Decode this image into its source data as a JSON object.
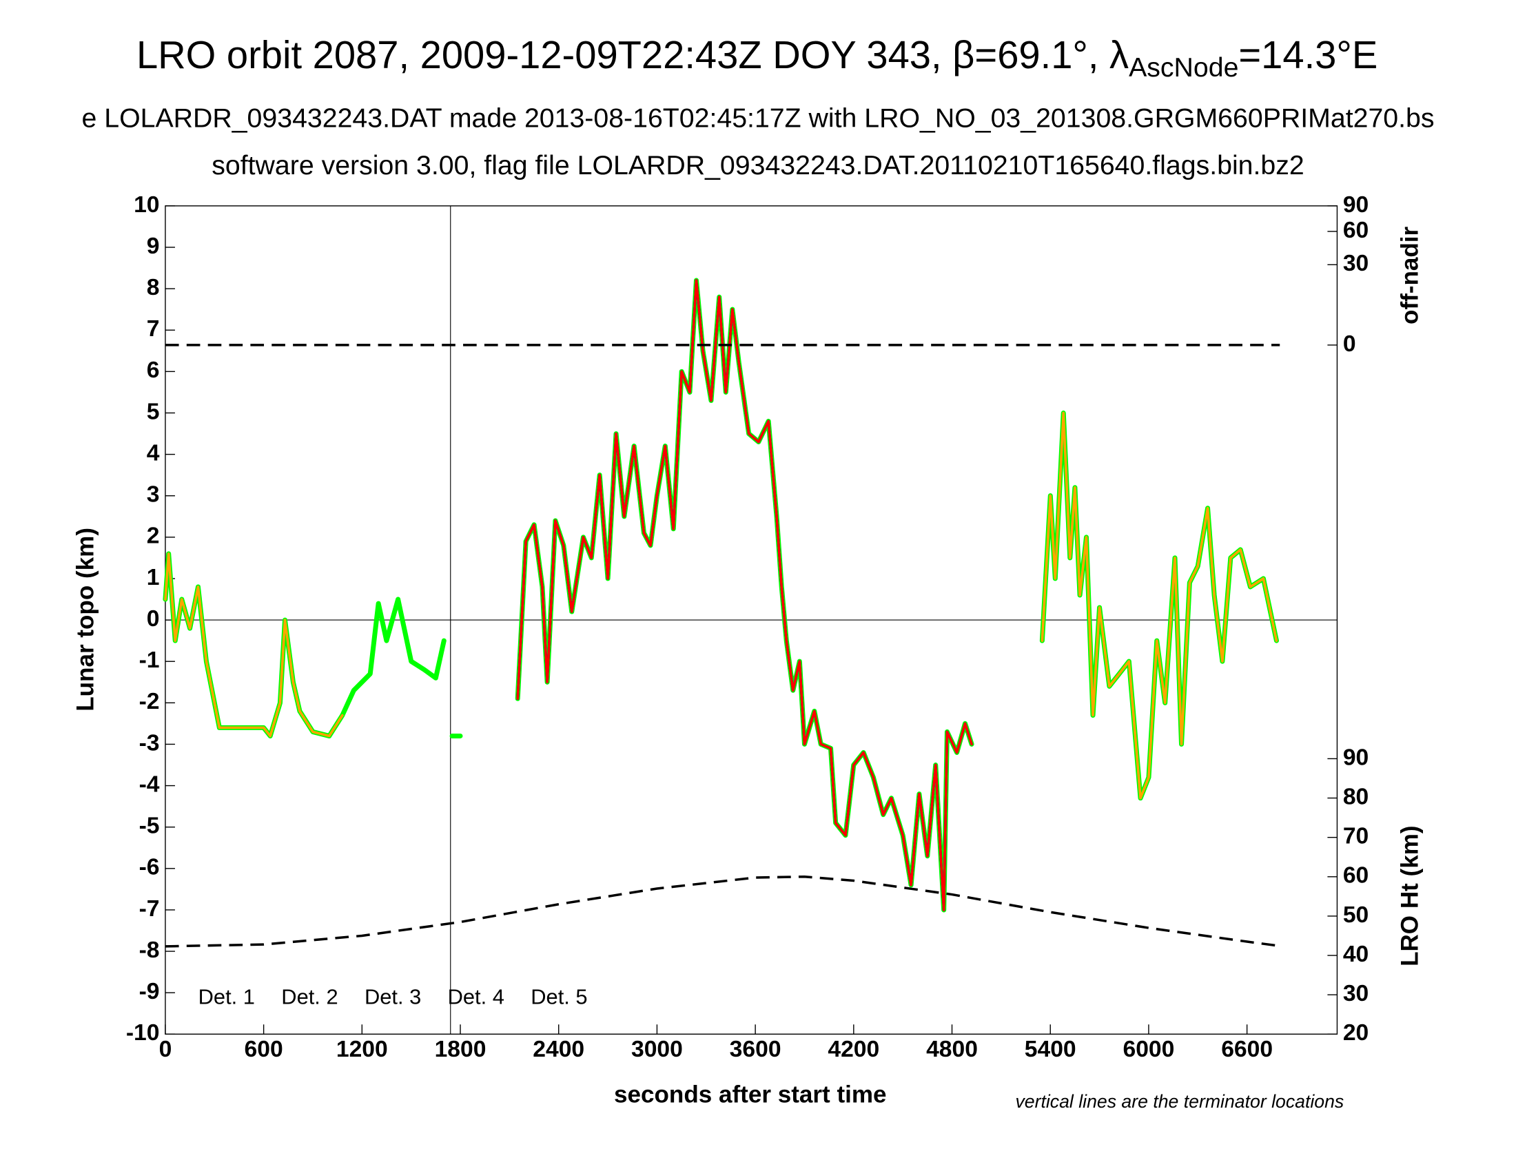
{
  "chart_data": {
    "type": "line",
    "title": "LRO orbit 2087, 2009-12-09T22:43Z DOY 343, β=69.1°, λ",
    "title_subscript": "AscNode",
    "title_end": "=14.3°E",
    "subtitle": "e LOLARDR_093432243.DAT made 2013-08-16T02:45:17Z with LRO_NO_03_201308.GRGM660PRIMat270.bs",
    "subtitle2": "software version 3.00, flag file LOLARDR_093432243.DAT.20110210T165640.flags.bin.bz2",
    "x_label": "seconds after start time",
    "y_label": "Lunar topo (km)",
    "y2_label": "off-nadir",
    "y3_label": "LRO Ht (km)",
    "note": "vertical lines are the terminator locations",
    "xlim": [
      0,
      7150
    ],
    "xticks": [
      0,
      600,
      1200,
      1800,
      2400,
      3000,
      3600,
      4200,
      4800,
      5400,
      6000,
      6600
    ],
    "ylim": [
      -10,
      10
    ],
    "yticks": [
      -10,
      -9,
      -8,
      -7,
      -6,
      -5,
      -4,
      -3,
      -2,
      -1,
      0,
      1,
      2,
      3,
      4,
      5,
      6,
      7,
      8,
      9,
      10
    ],
    "y2lim": [
      0,
      90
    ],
    "y2ticks": [
      0,
      30,
      60,
      90
    ],
    "y2scale": "sqrt",
    "y3lim": [
      20,
      90
    ],
    "y3ticks": [
      20,
      30,
      40,
      50,
      60,
      70,
      80,
      90
    ],
    "vlines": [
      1740
    ],
    "hlines": [
      0
    ],
    "legend": "lower left",
    "series": [
      {
        "name": "Det. 1",
        "color": "#000000",
        "axis": "y",
        "x": [
          2150,
          2200,
          2250,
          2300,
          2330,
          2380,
          2430,
          2480,
          2550,
          2600,
          2650,
          2700,
          2750,
          2800,
          2860,
          2920,
          2960,
          3000,
          3050,
          3100,
          3150,
          3200,
          3240,
          3280,
          3330,
          3380,
          3420,
          3460,
          3500,
          3560,
          3620,
          3680,
          3730,
          3760,
          3790,
          3830,
          3870,
          3900,
          3960,
          4000,
          4060,
          4090,
          4150,
          4200,
          4260,
          4320,
          4380,
          4430,
          4500,
          4550,
          4600,
          4650,
          4700,
          4750,
          4770,
          4830,
          4880,
          4920
        ],
        "values": [
          -1.9,
          1.9,
          2.3,
          0.8,
          -1.5,
          2.4,
          1.8,
          0.2,
          2,
          1.5,
          3.5,
          1,
          4.5,
          2.5,
          4.2,
          2.1,
          1.8,
          3,
          4.2,
          2.2,
          6,
          5.5,
          8.2,
          6.5,
          5.3,
          7.8,
          5.5,
          7.5,
          6.2,
          4.5,
          4.3,
          4.8,
          2.5,
          0.8,
          -0.5,
          -1.7,
          -1,
          -3,
          -2.2,
          -3,
          -3.1,
          -4.9,
          -5.2,
          -3.5,
          -3.2,
          -3.8,
          -4.7,
          -4.3,
          -5.2,
          -6.4,
          -4.2,
          -5.7,
          -3.5,
          -7,
          -2.7,
          -3.2,
          -2.5,
          -3
        ]
      },
      {
        "name": "Det. 2",
        "color": "#0000ff",
        "axis": "y",
        "x": [
          2150,
          2200,
          2250,
          2300,
          2330,
          2380,
          2430,
          2480,
          2550,
          2600,
          2650,
          2700,
          2750,
          2800,
          2860,
          2920,
          2960,
          3000,
          3050,
          3100,
          3150,
          3200,
          3240,
          3280,
          3330,
          3380,
          3420,
          3460,
          3500,
          3560,
          3620,
          3680,
          3730,
          3760,
          3790,
          3830,
          3870,
          3900,
          3960,
          4000,
          4060,
          4090,
          4150,
          4200,
          4260,
          4320,
          4380,
          4430,
          4500,
          4550,
          4600,
          4650,
          4700,
          4750,
          4770,
          4830,
          4880,
          4920
        ],
        "values": [
          -1.9,
          1.9,
          2.3,
          0.8,
          -1.5,
          2.4,
          1.8,
          0.2,
          2,
          1.5,
          3.5,
          1,
          4.5,
          2.5,
          4.2,
          2.1,
          1.8,
          3,
          4.2,
          2.2,
          6,
          5.5,
          8.2,
          6.5,
          5.3,
          7.8,
          5.5,
          7.5,
          6.2,
          4.5,
          4.3,
          4.8,
          2.5,
          0.8,
          -0.5,
          -1.7,
          -1,
          -3,
          -2.2,
          -3,
          -3.1,
          -4.9,
          -5.2,
          -3.5,
          -3.2,
          -3.8,
          -4.7,
          -4.3,
          -5.2,
          -6.4,
          -4.2,
          -5.7,
          -3.5,
          -7,
          -2.7,
          -3.2,
          -2.5,
          -3
        ]
      },
      {
        "name": "Det. 3",
        "color": "#00ff00",
        "axis": "y",
        "x": [
          0,
          20,
          60,
          100,
          150,
          200,
          250,
          330,
          450,
          600,
          640,
          700,
          730,
          780,
          820,
          900,
          1000,
          1080,
          1150,
          1250,
          1300,
          1350,
          1420,
          1500,
          1580,
          1650,
          1700,
          1725,
          1750,
          1800,
          1975,
          2150,
          2200,
          2250,
          2300,
          2330,
          2380,
          2430,
          2480,
          2550,
          2600,
          2650,
          2700,
          2750,
          2800,
          2860,
          2920,
          2960,
          3000,
          3050,
          3100,
          3150,
          3200,
          3240,
          3280,
          3330,
          3380,
          3420,
          3460,
          3500,
          3560,
          3620,
          3680,
          3730,
          3760,
          3790,
          3830,
          3870,
          3900,
          3960,
          4000,
          4060,
          4090,
          4150,
          4200,
          4260,
          4320,
          4380,
          4430,
          4500,
          4550,
          4600,
          4650,
          4700,
          4750,
          4770,
          4830,
          4880,
          4920,
          5100,
          5350,
          5400,
          5430,
          5480,
          5520,
          5550,
          5580,
          5620,
          5660,
          5700,
          5760,
          5820,
          5880,
          5950,
          6000,
          6050,
          6100,
          6160,
          6200,
          6250,
          6300,
          6360,
          6400,
          6450,
          6500,
          6560,
          6620,
          6700,
          6780
        ],
        "values": [
          0.5,
          1.6,
          -0.5,
          0.5,
          -0.2,
          0.8,
          -1,
          -2.6,
          -2.6,
          -2.6,
          -2.8,
          -2,
          0,
          -1.5,
          -2.2,
          -2.7,
          -2.8,
          -2.3,
          -1.7,
          -1.3,
          0.4,
          -0.5,
          0.5,
          -1,
          -1.2,
          -1.4,
          -0.5,
          null,
          -2.8,
          -2.8,
          null,
          -1.9,
          1.9,
          2.3,
          0.8,
          -1.5,
          2.4,
          1.8,
          0.2,
          2,
          1.5,
          3.5,
          1,
          4.5,
          2.5,
          4.2,
          2.1,
          1.8,
          3,
          4.2,
          2.2,
          6,
          5.5,
          8.2,
          6.5,
          5.3,
          7.8,
          5.5,
          7.5,
          6.2,
          4.5,
          4.3,
          4.8,
          2.5,
          0.8,
          -0.5,
          -1.7,
          -1,
          -3,
          -2.2,
          -3,
          -3.1,
          -4.9,
          -5.2,
          -3.5,
          -3.2,
          -3.8,
          -4.7,
          -4.3,
          -5.2,
          -6.4,
          -4.2,
          -5.7,
          -3.5,
          -7,
          -2.7,
          -3.2,
          -2.5,
          -3,
          null,
          -0.5,
          3,
          1,
          5,
          1.5,
          3.2,
          0.6,
          2,
          -2.3,
          0.3,
          -1.6,
          -1.3,
          -1,
          -4.3,
          -3.8,
          -0.5,
          -2,
          1.5,
          -3,
          0.9,
          1.3,
          2.7,
          0.6,
          -1,
          1.5,
          1.7,
          0.8,
          1,
          -0.5
        ]
      },
      {
        "name": "Det. 4",
        "color": "#ffa500",
        "axis": "y",
        "x": [
          0,
          20,
          60,
          100,
          150,
          200,
          250,
          330,
          450,
          600,
          640,
          700,
          730,
          780,
          820,
          900,
          1000,
          1080,
          3000,
          5350,
          5400,
          5430,
          5480,
          5520,
          5550,
          5580,
          5620,
          5660,
          5700,
          5760,
          5820,
          5880,
          5950,
          6000,
          6050,
          6100,
          6160,
          6200,
          6250,
          6300,
          6360,
          6400,
          6450,
          6500,
          6560,
          6620,
          6700,
          6780
        ],
        "values": [
          0.5,
          1.6,
          -0.5,
          0.5,
          -0.2,
          0.8,
          -1,
          -2.6,
          -2.6,
          -2.6,
          -2.8,
          -2,
          0,
          -1.5,
          -2.2,
          -2.7,
          -2.8,
          -2.3,
          null,
          -0.5,
          3,
          1,
          5,
          1.5,
          3.2,
          0.6,
          2,
          -2.3,
          0.3,
          -1.6,
          -1.3,
          -1,
          -4.3,
          -3.8,
          -0.5,
          -2,
          1.5,
          -3,
          0.9,
          1.3,
          2.7,
          0.6,
          -1,
          1.5,
          1.7,
          0.8,
          1,
          -0.5
        ]
      },
      {
        "name": "Det. 5",
        "color": "#ff0000",
        "axis": "y",
        "x": [
          2150,
          2200,
          2250,
          2300,
          2330,
          2380,
          2430,
          2480,
          2550,
          2600,
          2650,
          2700,
          2750,
          2800,
          2860,
          2920,
          2960,
          3000,
          3050,
          3100,
          3150,
          3200,
          3240,
          3280,
          3330,
          3380,
          3420,
          3460,
          3500,
          3560,
          3620,
          3680,
          3730,
          3760,
          3790,
          3830,
          3870,
          3900,
          3960,
          4000,
          4060,
          4090,
          4150,
          4200,
          4260,
          4320,
          4380,
          4430,
          4500,
          4550,
          4600,
          4650,
          4700,
          4750,
          4770,
          4830,
          4880,
          4920
        ],
        "values": [
          -1.9,
          1.9,
          2.3,
          0.8,
          -1.5,
          2.4,
          1.8,
          0.2,
          2,
          1.5,
          3.5,
          1,
          4.5,
          2.5,
          4.2,
          2.1,
          1.8,
          3,
          4.2,
          2.2,
          6,
          5.5,
          8.2,
          6.5,
          5.3,
          7.8,
          5.5,
          7.5,
          6.2,
          4.5,
          4.3,
          4.8,
          2.5,
          0.8,
          -0.5,
          -1.7,
          -1,
          -3,
          -2.2,
          -3,
          -3.1,
          -4.9,
          -5.2,
          -3.5,
          -3.2,
          -3.8,
          -4.7,
          -4.3,
          -5.2,
          -6.4,
          -4.2,
          -5.7,
          -3.5,
          -7,
          -2.7,
          -3.2,
          -2.5,
          -3
        ]
      },
      {
        "color": "#000000",
        "axis": "y2",
        "dash": true,
        "x": [
          0,
          6800
        ],
        "values": [
          0,
          0
        ]
      },
      {
        "color": "#000000",
        "axis": "y3",
        "dash": true,
        "x": [
          0,
          600,
          1200,
          1800,
          2400,
          3000,
          3600,
          3900,
          4200,
          4800,
          5400,
          6000,
          6600,
          6800
        ],
        "values": [
          42.3,
          42.8,
          45,
          48.5,
          53,
          57,
          59.8,
          60,
          59,
          55.5,
          51,
          47,
          43.5,
          42.4
        ]
      }
    ]
  }
}
